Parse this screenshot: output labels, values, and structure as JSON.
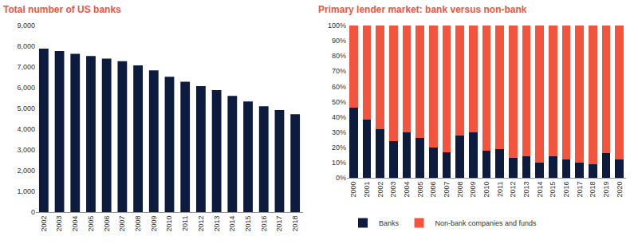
{
  "chart_data": [
    {
      "type": "bar",
      "title": "Total number of US banks",
      "categories": [
        "2002",
        "2003",
        "2004",
        "2005",
        "2006",
        "2007",
        "2008",
        "2009",
        "2010",
        "2011",
        "2012",
        "2013",
        "2014",
        "2015",
        "2016",
        "2017",
        "2018"
      ],
      "values": [
        7880,
        7770,
        7630,
        7530,
        7400,
        7280,
        7080,
        6840,
        6530,
        6290,
        6080,
        5880,
        5610,
        5340,
        5110,
        4920,
        4720
      ],
      "color": "#0d1b3e",
      "ylim": [
        0,
        9000
      ],
      "yticks": [
        0,
        {
          "value": 1000,
          "label": "1,000"
        },
        {
          "value": 2000,
          "label": "2,000"
        },
        {
          "value": 3000,
          "label": "3,000"
        },
        {
          "value": 4000,
          "label": "4,000"
        },
        {
          "value": 5000,
          "label": "5,000"
        },
        {
          "value": 6000,
          "label": "6,000"
        },
        {
          "value": 7000,
          "label": "7,000"
        },
        {
          "value": 8000,
          "label": "8,000"
        },
        {
          "value": 9000,
          "label": "9,000"
        }
      ],
      "grid": false
    },
    {
      "type": "bar",
      "title": "Primary lender market: bank versus non-bank",
      "categories": [
        "2000",
        "2001",
        "2002",
        "2003",
        "2004",
        "2005",
        "2006",
        "2007",
        "2008",
        "2009",
        "2010",
        "2011",
        "2012",
        "2013",
        "2014",
        "2015",
        "2016",
        "2017",
        "2018",
        "2019",
        "2020"
      ],
      "series": [
        {
          "name": "Banks",
          "color": "#0d1b3e",
          "values": [
            46,
            38,
            32,
            24,
            30,
            26,
            20,
            17,
            28,
            30,
            18,
            19,
            13,
            14,
            10,
            14,
            12,
            10,
            9,
            16,
            12
          ]
        },
        {
          "name": "Non-bank companies and funds",
          "color": "#f2543d",
          "values": [
            54,
            62,
            68,
            76,
            70,
            74,
            80,
            83,
            72,
            70,
            82,
            81,
            87,
            86,
            90,
            86,
            88,
            90,
            91,
            84,
            88
          ]
        }
      ],
      "stacked": true,
      "ylim": [
        0,
        100
      ],
      "yticks": [
        {
          "value": 0,
          "label": "0%"
        },
        {
          "value": 10,
          "label": "10%"
        },
        {
          "value": 20,
          "label": "20%"
        },
        {
          "value": 30,
          "label": "30%"
        },
        {
          "value": 40,
          "label": "40%"
        },
        {
          "value": 50,
          "label": "50%"
        },
        {
          "value": 60,
          "label": "60%"
        },
        {
          "value": 70,
          "label": "70%"
        },
        {
          "value": 80,
          "label": "80%"
        },
        {
          "value": 90,
          "label": "90%"
        },
        {
          "value": 100,
          "label": "100%"
        }
      ],
      "legend": "bottom",
      "grid": false
    }
  ]
}
